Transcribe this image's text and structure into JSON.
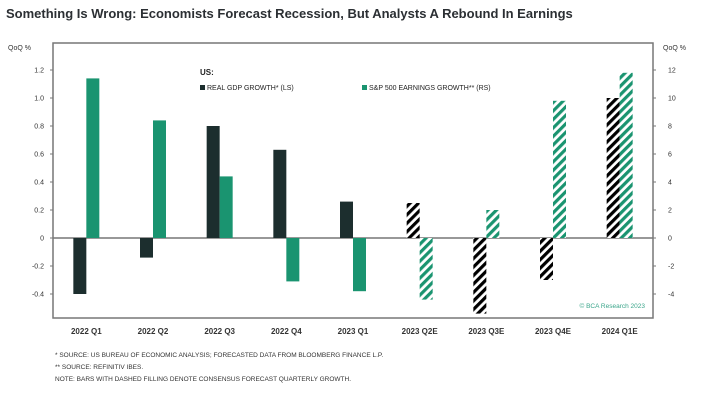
{
  "chart_data": {
    "type": "bar",
    "title": "Something Is Wrong: Economists Forecast Recession, But Analysts A Rebound In Earnings",
    "categories": [
      "2022 Q1",
      "2022 Q2",
      "2022 Q3",
      "2022 Q4",
      "2023 Q1",
      "2023 Q2E",
      "2023 Q3E",
      "2023 Q4E",
      "2024 Q1E"
    ],
    "forecast_from_index": 5,
    "legend_title": "US:",
    "legend_position": "top-center",
    "series": [
      {
        "name": "REAL GDP GROWTH* (LS)",
        "axis": "left",
        "color": "#1c2e2e",
        "values": [
          -0.4,
          -0.14,
          0.8,
          0.63,
          0.26,
          0.25,
          -0.54,
          -0.3,
          1.0
        ]
      },
      {
        "name": "S&P 500 EARNINGS GROWTH** (RS)",
        "axis": "right",
        "color": "#1a9470",
        "values": [
          11.4,
          8.4,
          4.4,
          -3.1,
          -3.8,
          -4.4,
          2.0,
          9.8,
          11.8
        ]
      }
    ],
    "left_axis": {
      "label": "QoQ %",
      "ylim": [
        -0.6,
        1.4
      ],
      "ticks": [
        "1.2",
        "1.0",
        "0.8",
        "0.6",
        "0.4",
        "0.2",
        "0",
        "-0.2",
        "-0.4"
      ],
      "tick_values": [
        1.2,
        1.0,
        0.8,
        0.6,
        0.4,
        0.2,
        0,
        -0.2,
        -0.4
      ]
    },
    "right_axis": {
      "label": "QoQ %",
      "ylim": [
        -6,
        14
      ],
      "ticks": [
        "12",
        "10",
        "8",
        "6",
        "4",
        "2",
        "0",
        "-2",
        "-4"
      ],
      "tick_values": [
        12,
        10,
        8,
        6,
        4,
        2,
        0,
        -2,
        -4
      ]
    },
    "grid": false,
    "copyright": "© BCA Research 2023"
  },
  "footnotes": [
    "*  SOURCE: US BUREAU OF ECONOMIC ANALYSIS; FORECASTED DATA FROM BLOOMBERG FINANCE L.P.",
    "**  SOURCE: REFINITIV IBES.",
    "NOTE: BARS WITH DASHED FILLING DENOTE CONSENSUS FORECAST QUARTERLY GROWTH."
  ]
}
